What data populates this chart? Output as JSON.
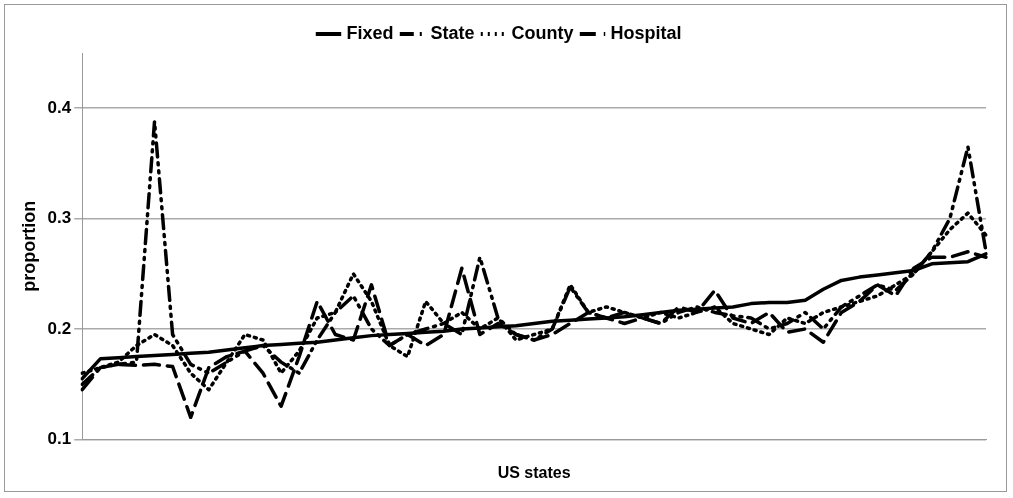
{
  "chart_data": {
    "type": "line",
    "xlabel": "US states",
    "ylabel": "proportion",
    "categories": [
      null,
      null,
      null,
      null,
      null,
      null,
      null,
      null,
      null,
      null,
      null,
      null,
      null,
      null,
      null,
      null,
      null,
      null,
      null,
      null,
      null,
      null,
      null,
      null,
      null,
      null,
      null,
      null,
      null,
      null,
      null,
      null,
      null,
      null,
      null,
      null,
      null,
      null,
      null,
      null,
      null,
      null,
      null,
      null,
      null,
      null,
      null,
      null,
      null,
      null,
      null
    ],
    "ylim": [
      0.1,
      0.45
    ],
    "yticks": [
      0.1,
      0.2,
      0.3,
      0.4
    ],
    "grid": "y",
    "legend": "top",
    "marker": "none",
    "series": [
      {
        "name": "Fixed",
        "color": "#000000",
        "line_style": "solid",
        "values": [
          0.155,
          0.173,
          0.174,
          0.175,
          0.176,
          0.177,
          0.178,
          0.179,
          0.181,
          0.183,
          0.185,
          0.186,
          0.187,
          0.188,
          0.19,
          0.192,
          0.194,
          0.195,
          0.196,
          0.197,
          0.198,
          0.2,
          0.201,
          0.202,
          0.203,
          0.205,
          0.207,
          0.208,
          0.209,
          0.21,
          0.211,
          0.213,
          0.215,
          0.217,
          0.218,
          0.219,
          0.22,
          0.223,
          0.224,
          0.224,
          0.226,
          0.236,
          0.244,
          0.247,
          0.249,
          0.251,
          0.253,
          0.259,
          0.26,
          0.261,
          0.268
        ]
      },
      {
        "name": "State",
        "color": "#000000",
        "line_style": "dashdot",
        "values": [
          0.15,
          0.165,
          0.168,
          0.17,
          0.388,
          0.195,
          0.168,
          0.16,
          0.17,
          0.18,
          0.185,
          0.17,
          0.16,
          0.19,
          0.215,
          0.23,
          0.2,
          0.185,
          0.195,
          0.2,
          0.205,
          0.195,
          0.265,
          0.21,
          0.195,
          0.19,
          0.2,
          0.238,
          0.215,
          0.21,
          0.215,
          0.21,
          0.205,
          0.215,
          0.22,
          0.215,
          0.212,
          0.21,
          0.2,
          0.205,
          0.215,
          0.2,
          0.22,
          0.23,
          0.24,
          0.235,
          0.25,
          0.27,
          0.3,
          0.365,
          0.27
        ]
      },
      {
        "name": "County",
        "color": "#000000",
        "line_style": "dotted",
        "values": [
          0.16,
          0.165,
          0.17,
          0.185,
          0.195,
          0.185,
          0.16,
          0.145,
          0.17,
          0.195,
          0.19,
          0.16,
          0.18,
          0.21,
          0.215,
          0.25,
          0.225,
          0.185,
          0.175,
          0.225,
          0.205,
          0.215,
          0.2,
          0.21,
          0.19,
          0.195,
          0.2,
          0.24,
          0.215,
          0.22,
          0.215,
          0.21,
          0.215,
          0.21,
          0.215,
          0.22,
          0.205,
          0.2,
          0.195,
          0.21,
          0.205,
          0.215,
          0.22,
          0.225,
          0.23,
          0.24,
          0.25,
          0.27,
          0.29,
          0.305,
          0.285
        ]
      },
      {
        "name": "Hospital",
        "color": "#000000",
        "line_style": "dashed",
        "values": [
          0.145,
          0.165,
          0.168,
          0.167,
          0.168,
          0.166,
          0.12,
          0.165,
          0.175,
          0.18,
          0.16,
          0.13,
          0.175,
          0.225,
          0.195,
          0.19,
          0.24,
          0.185,
          0.195,
          0.185,
          0.195,
          0.255,
          0.195,
          0.205,
          0.195,
          0.19,
          0.195,
          0.205,
          0.215,
          0.21,
          0.205,
          0.21,
          0.205,
          0.22,
          0.215,
          0.235,
          0.21,
          0.205,
          0.215,
          0.197,
          0.2,
          0.188,
          0.215,
          0.225,
          0.24,
          0.23,
          0.255,
          0.265,
          0.265,
          0.27,
          0.265
        ]
      }
    ]
  }
}
